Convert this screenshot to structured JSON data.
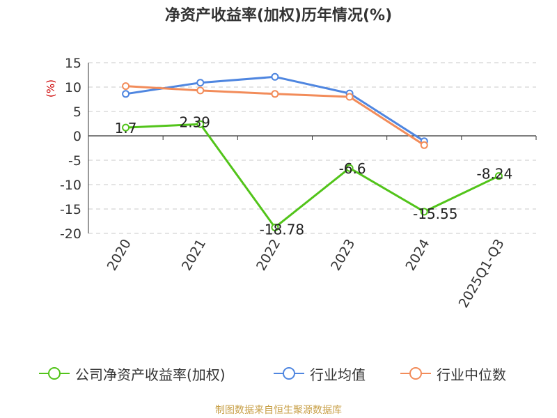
{
  "title": "净资产收益率(加权)历年情况(%)",
  "source": "制图数据来自恒生聚源数据库",
  "chart_data": {
    "type": "line",
    "title": "净资产收益率(加权)历年情况(%)",
    "ylabel": "(%)",
    "xlabel": "",
    "categories": [
      "2020",
      "2021",
      "2022",
      "2023",
      "2024",
      "2025Q1-Q3"
    ],
    "yticks": [
      "15",
      "10",
      "5",
      "0",
      "-5",
      "-10",
      "-15",
      "-20"
    ],
    "ylim": [
      -20,
      15
    ],
    "grid": true,
    "legend_position": "bottom",
    "series": [
      {
        "name": "公司净资产收益率(加权)",
        "color": "#52c41a",
        "values": [
          1.7,
          2.39,
          -18.78,
          -6.6,
          -15.55,
          -8.24
        ],
        "labels": [
          "1.7",
          "2.39",
          "-18.78",
          "-6.6",
          "-15.55",
          "-8.24"
        ]
      },
      {
        "name": "行业均值",
        "color": "#4f86e0",
        "values": [
          8.6,
          10.9,
          12.1,
          8.7,
          -1.1,
          null
        ]
      },
      {
        "name": "行业中位数",
        "color": "#f28c5a",
        "values": [
          10.2,
          9.3,
          8.6,
          8.0,
          -1.9,
          null
        ]
      }
    ]
  }
}
